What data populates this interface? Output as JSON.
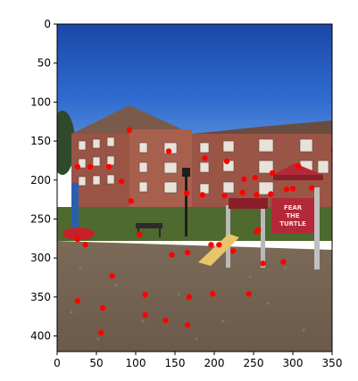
{
  "figure": {
    "image_subject": "photo",
    "sign_text": [
      "FEAR",
      "THE",
      "TURTLE"
    ]
  },
  "axes": {
    "x": {
      "range": [
        0,
        350
      ],
      "ticks": [
        0,
        50,
        100,
        150,
        200,
        250,
        300,
        350
      ]
    },
    "y": {
      "range": [
        420,
        0
      ],
      "ticks": [
        0,
        50,
        100,
        150,
        200,
        250,
        300,
        350,
        400
      ]
    }
  },
  "overlay": {
    "marker_color": "#ff0000",
    "points": [
      [
        92,
        136
      ],
      [
        142,
        163
      ],
      [
        188,
        172
      ],
      [
        216,
        176
      ],
      [
        238,
        199
      ],
      [
        274,
        191
      ],
      [
        307,
        182
      ],
      [
        352,
        162
      ],
      [
        26,
        183
      ],
      [
        42,
        183
      ],
      [
        66,
        183
      ],
      [
        82,
        202
      ],
      [
        94,
        227
      ],
      [
        165,
        217
      ],
      [
        185,
        219
      ],
      [
        213,
        220
      ],
      [
        236,
        216
      ],
      [
        252,
        197
      ],
      [
        254,
        219
      ],
      [
        272,
        218
      ],
      [
        292,
        212
      ],
      [
        300,
        211
      ],
      [
        324,
        210
      ],
      [
        26,
        276
      ],
      [
        36,
        283
      ],
      [
        105,
        270
      ],
      [
        146,
        296
      ],
      [
        166,
        293
      ],
      [
        196,
        283
      ],
      [
        206,
        283
      ],
      [
        224,
        291
      ],
      [
        254,
        266
      ],
      [
        256,
        264
      ],
      [
        262,
        307
      ],
      [
        288,
        305
      ],
      [
        70,
        323
      ],
      [
        112,
        347
      ],
      [
        168,
        350
      ],
      [
        198,
        346
      ],
      [
        244,
        346
      ],
      [
        26,
        355
      ],
      [
        58,
        364
      ],
      [
        112,
        373
      ],
      [
        138,
        380
      ],
      [
        166,
        386
      ],
      [
        56,
        396
      ]
    ]
  }
}
